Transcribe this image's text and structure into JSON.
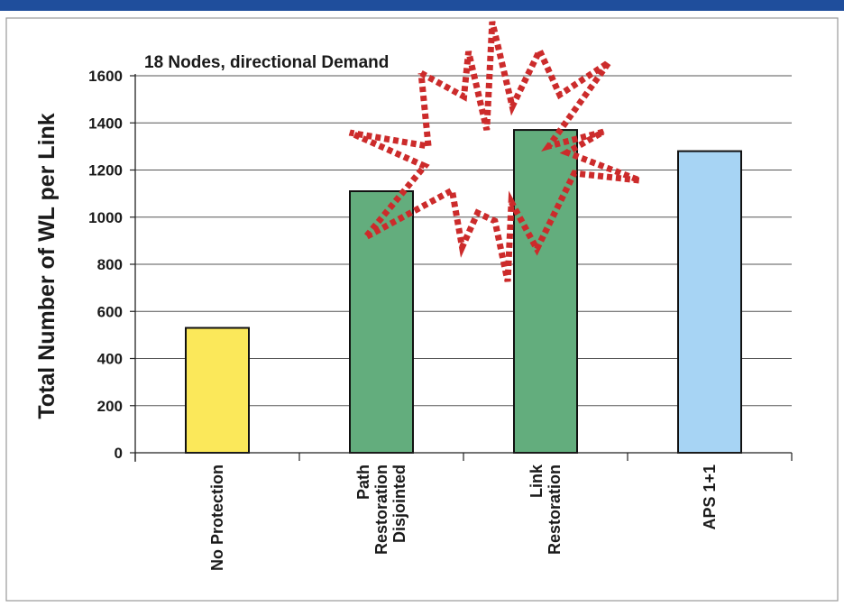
{
  "chart_data": {
    "type": "bar",
    "title": "18 Nodes, directional Demand",
    "ylabel": "Total Number of WL per Link",
    "xlabel": "",
    "categories": [
      "No Protection",
      "Path Restoration Disjointed",
      "Link Restoration",
      "APS 1+1"
    ],
    "category_lines": [
      [
        "No Protection"
      ],
      [
        "Path",
        "Restoration",
        "Disjointed"
      ],
      [
        "Link",
        "Restoration"
      ],
      [
        "APS 1+1"
      ]
    ],
    "values": [
      530,
      1110,
      1370,
      1280
    ],
    "bar_colors": [
      "#fbe85a",
      "#63ad7d",
      "#63ad7d",
      "#a7d4f4"
    ],
    "ylim": [
      0,
      1600
    ],
    "yticks": [
      "0",
      "200",
      "400",
      "600",
      "800",
      "1000",
      "1200",
      "1400",
      "1600"
    ],
    "grid": true,
    "legend": "none",
    "highlight": "red dotted starburst around Link Restoration and APS 1+1",
    "colors": {
      "top_border": "#1f4e9c",
      "frame": "#9a9a9a",
      "highlight": "#cc2b2b"
    }
  }
}
